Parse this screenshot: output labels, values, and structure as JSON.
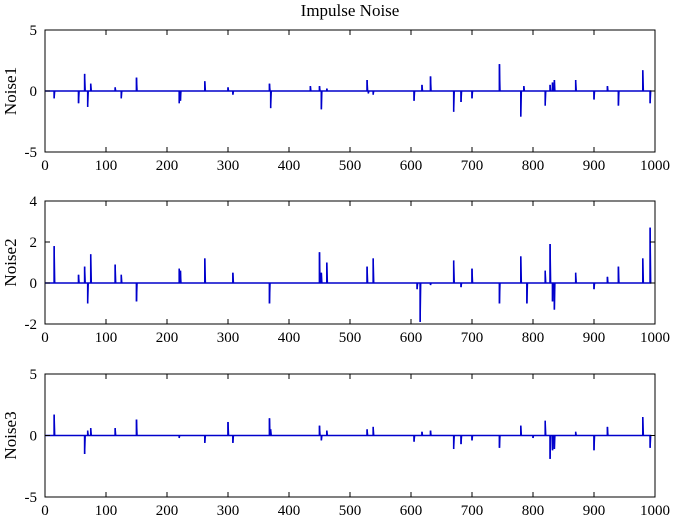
{
  "chart_data": [
    {
      "type": "line",
      "title": "Impulse Noise",
      "xlabel": "",
      "ylabel": "Noise1",
      "xlim": [
        0,
        1000
      ],
      "ylim": [
        -5,
        5
      ],
      "xticks": [
        0,
        100,
        200,
        300,
        400,
        500,
        600,
        700,
        800,
        900,
        1000
      ],
      "yticks": [
        -5,
        0,
        5
      ],
      "grid": false,
      "line_color": "#0000cc",
      "series": [
        {
          "x": [
            15,
            55,
            65,
            70,
            75,
            115,
            125,
            150,
            220,
            222,
            262,
            300,
            308,
            368,
            370,
            435,
            450,
            453,
            462,
            528,
            530,
            538,
            605,
            618,
            632,
            670,
            682,
            700,
            745,
            780,
            785,
            820,
            828,
            832,
            835,
            870,
            900,
            922,
            940,
            980,
            992
          ],
          "values": [
            -0.6,
            -1.0,
            1.4,
            -1.3,
            0.6,
            0.3,
            -0.6,
            1.1,
            -1.0,
            -0.8,
            0.8,
            0.3,
            -0.3,
            0.6,
            -1.4,
            0.4,
            0.4,
            -1.5,
            0.2,
            0.9,
            -0.2,
            -0.3,
            -0.8,
            0.5,
            1.2,
            -1.7,
            -0.9,
            -0.6,
            2.2,
            -2.1,
            0.4,
            -1.2,
            0.5,
            0.7,
            0.9,
            0.9,
            -0.7,
            0.4,
            -1.2,
            1.7,
            -1.0
          ]
        }
      ]
    },
    {
      "type": "line",
      "title": "",
      "xlabel": "",
      "ylabel": "Noise2",
      "xlim": [
        0,
        1000
      ],
      "ylim": [
        -2,
        4
      ],
      "xticks": [
        0,
        100,
        200,
        300,
        400,
        500,
        600,
        700,
        800,
        900,
        1000
      ],
      "yticks": [
        -2,
        0,
        2,
        4
      ],
      "grid": false,
      "line_color": "#0000cc",
      "series": [
        {
          "x": [
            15,
            55,
            65,
            70,
            75,
            115,
            125,
            150,
            220,
            222,
            262,
            308,
            368,
            450,
            453,
            462,
            528,
            538,
            610,
            615,
            632,
            670,
            682,
            700,
            745,
            780,
            790,
            820,
            828,
            832,
            835,
            870,
            900,
            922,
            940,
            980,
            992
          ],
          "values": [
            1.8,
            0.4,
            0.8,
            -1.0,
            1.4,
            0.9,
            0.4,
            -0.9,
            0.7,
            0.6,
            1.2,
            0.5,
            -1.0,
            1.5,
            0.5,
            1.0,
            0.8,
            1.2,
            -0.3,
            -1.9,
            -0.1,
            1.1,
            -0.2,
            0.7,
            -1.0,
            1.3,
            -1.0,
            0.6,
            1.9,
            -0.9,
            -1.3,
            0.5,
            -0.3,
            0.3,
            0.8,
            1.2,
            2.7
          ]
        }
      ]
    },
    {
      "type": "line",
      "title": "",
      "xlabel": "",
      "ylabel": "Noise3",
      "xlim": [
        0,
        1000
      ],
      "ylim": [
        -5,
        5
      ],
      "xticks": [
        0,
        100,
        200,
        300,
        400,
        500,
        600,
        700,
        800,
        900,
        1000
      ],
      "yticks": [
        -5,
        0,
        5
      ],
      "grid": false,
      "line_color": "#0000cc",
      "series": [
        {
          "x": [
            15,
            65,
            70,
            75,
            115,
            150,
            220,
            262,
            300,
            308,
            368,
            370,
            450,
            453,
            462,
            528,
            538,
            605,
            618,
            632,
            670,
            682,
            700,
            745,
            780,
            800,
            820,
            828,
            832,
            835,
            870,
            900,
            922,
            980,
            992
          ],
          "values": [
            1.7,
            -1.5,
            0.4,
            0.6,
            0.6,
            1.3,
            -0.2,
            -0.6,
            1.1,
            -0.6,
            1.4,
            0.5,
            0.8,
            -0.4,
            0.4,
            0.5,
            0.7,
            -0.5,
            0.3,
            0.4,
            -1.1,
            -0.7,
            -0.4,
            -1.0,
            0.8,
            -0.2,
            1.2,
            -1.9,
            -1.2,
            -1.1,
            0.3,
            -1.2,
            0.7,
            1.5,
            -1.0
          ]
        }
      ]
    }
  ]
}
